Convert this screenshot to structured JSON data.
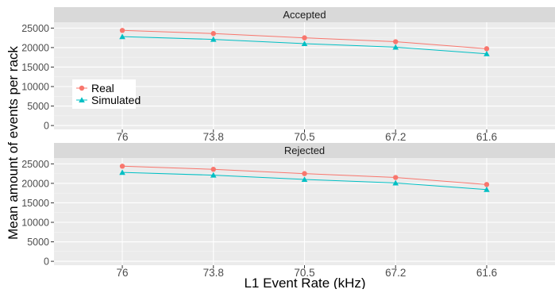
{
  "chart_data": {
    "type": "line",
    "xlabel": "L1 Event Rate (kHz)",
    "ylabel": "Mean amount of events per rack",
    "categories": [
      "76",
      "73.8",
      "70.5",
      "67.2",
      "61.6"
    ],
    "yticks": [
      0,
      5000,
      10000,
      15000,
      20000,
      25000
    ],
    "ylim": [
      -1000,
      26500
    ],
    "legend_placement": "inside-left",
    "grid": true,
    "panels": [
      {
        "title": "Accepted",
        "series": [
          {
            "name": "Real",
            "color": "#F8766D",
            "marker": "circle",
            "values": [
              24400,
              23600,
              22500,
              21500,
              19700
            ]
          },
          {
            "name": "Simulated",
            "color": "#00BFC4",
            "marker": "triangle",
            "values": [
              22800,
              22100,
              21000,
              20100,
              18400
            ]
          }
        ]
      },
      {
        "title": "Rejected",
        "series": [
          {
            "name": "Real",
            "color": "#F8766D",
            "marker": "circle",
            "values": [
              24400,
              23600,
              22500,
              21500,
              19700
            ]
          },
          {
            "name": "Simulated",
            "color": "#00BFC4",
            "marker": "triangle",
            "values": [
              22800,
              22100,
              21000,
              20100,
              18400
            ]
          }
        ]
      }
    ],
    "legend": [
      {
        "label": "Real",
        "color": "#F8766D",
        "marker": "circle"
      },
      {
        "label": "Simulated",
        "color": "#00BFC4",
        "marker": "triangle"
      }
    ]
  }
}
